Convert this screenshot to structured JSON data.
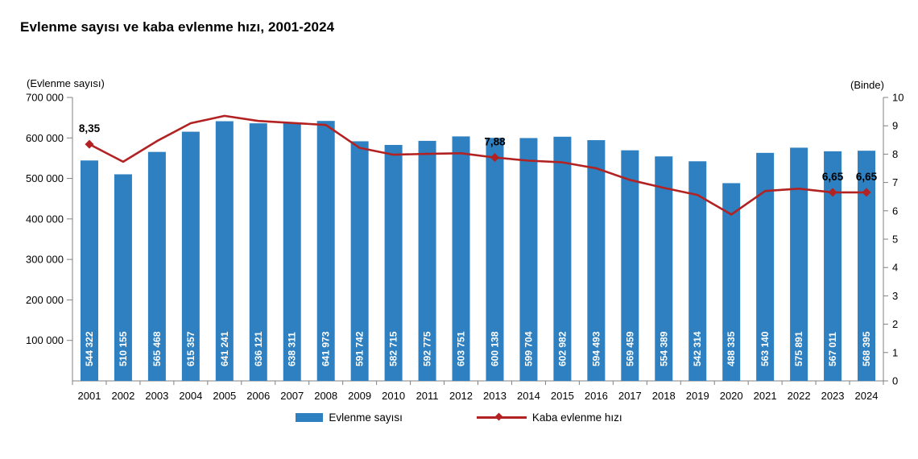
{
  "title": "Evlenme sayısı ve kaba evlenme hızı, 2001-2024",
  "left_axis": {
    "caption": "(Evlenme sayısı)",
    "tick_labels_top_to_bottom": [
      "700 000",
      "600 000",
      "500 000",
      "400 000",
      "300 000",
      "200 000",
      "100 000"
    ],
    "max": 700000,
    "tick_step": 100000
  },
  "right_axis": {
    "caption": "(Binde)",
    "min": 0,
    "max": 10,
    "tick_labels": [
      "0",
      "1",
      "2",
      "3",
      "4",
      "5",
      "6",
      "7",
      "8",
      "9",
      "10"
    ]
  },
  "legend": [
    {
      "label": "Evlenme sayısı",
      "type": "bar",
      "color": "#2E80C0"
    },
    {
      "label": "Kaba evlenme hızı",
      "type": "line",
      "color": "#B22222"
    }
  ],
  "colors": {
    "bar": "#2E80C0",
    "line": "#B22222",
    "axis": "#808080",
    "bar_label": "#FFFFFF",
    "text": "#000000",
    "background": "#FFFFFF"
  },
  "chart_data": {
    "type": "combo-bar-line",
    "title": "Evlenme sayısı ve kaba evlenme hızı, 2001-2024",
    "xlabel": "",
    "ylabel_left": "(Evlenme sayısı)",
    "ylabel_right": "(Binde)",
    "ylim_left": [
      0,
      700000
    ],
    "ylim_right": [
      0,
      10
    ],
    "grid": false,
    "legend_position": "bottom",
    "categories": [
      "2001",
      "2002",
      "2003",
      "2004",
      "2005",
      "2006",
      "2007",
      "2008",
      "2009",
      "2010",
      "2011",
      "2012",
      "2013",
      "2014",
      "2015",
      "2016",
      "2017",
      "2018",
      "2019",
      "2020",
      "2021",
      "2022",
      "2023",
      "2024"
    ],
    "series": [
      {
        "name": "Evlenme sayısı",
        "type": "bar",
        "axis": "left",
        "values": [
          544322,
          510155,
          565468,
          615357,
          641241,
          636121,
          638311,
          641973,
          591742,
          582715,
          592775,
          603751,
          600138,
          599704,
          602982,
          594493,
          569459,
          554389,
          542314,
          488335,
          563140,
          575891,
          567011,
          568395
        ],
        "value_labels": [
          "544 322",
          "510 155",
          "565 468",
          "615 357",
          "641 241",
          "636 121",
          "638 311",
          "641 973",
          "591 742",
          "582 715",
          "592 775",
          "603 751",
          "600 138",
          "599 704",
          "602 982",
          "594 493",
          "569 459",
          "554 389",
          "542 314",
          "488 335",
          "563 140",
          "575 891",
          "567 011",
          "568 395"
        ]
      },
      {
        "name": "Kaba evlenme hızı",
        "type": "line",
        "axis": "right",
        "values": [
          8.35,
          7.73,
          8.46,
          9.09,
          9.35,
          9.17,
          9.1,
          9.03,
          8.22,
          7.98,
          8.01,
          8.03,
          7.88,
          7.77,
          7.71,
          7.5,
          7.09,
          6.81,
          6.56,
          5.87,
          6.7,
          6.78,
          6.65,
          6.65
        ],
        "point_labels": {
          "0": "8,35",
          "12": "7,88",
          "22": "6,65",
          "23": "6,65"
        }
      }
    ]
  }
}
